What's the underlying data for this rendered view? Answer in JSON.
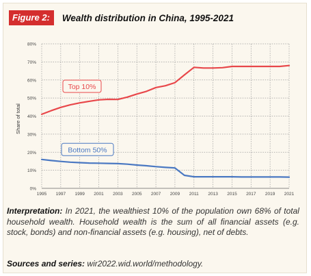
{
  "figure": {
    "badge": "Figure 2:",
    "title": "Wealth distribution in China, 1995-2021",
    "interpretation_label": "Interpretation:",
    "interpretation_text": "In 2021, the wealthiest 10% of the population own 68% of total household wealth. Household wealth is the sum of all financial assets (e.g. stock, bonds) and non-financial assets (e.g. housing), net of debts.",
    "sources_label": "Sources and series:",
    "sources_text": "wir2022.wid.world/methodology."
  },
  "colors": {
    "top10": "#e8474a",
    "bottom50": "#4a78c2",
    "badge": "#d42e2e",
    "grid": "#9a9a9a"
  },
  "chart_data": {
    "type": "line",
    "ylabel": "Share of total",
    "xlabel": "",
    "x": [
      1995,
      1996,
      1997,
      1998,
      1999,
      2000,
      2001,
      2002,
      2003,
      2004,
      2005,
      2006,
      2007,
      2008,
      2009,
      2010,
      2011,
      2012,
      2013,
      2014,
      2015,
      2016,
      2017,
      2018,
      2019,
      2020,
      2021
    ],
    "x_ticks": [
      "1995",
      "1997",
      "1999",
      "2001",
      "2003",
      "2005",
      "2007",
      "2009",
      "2011",
      "2013",
      "2015",
      "2017",
      "2019",
      "2021"
    ],
    "y_ticks": [
      "0%",
      "10%",
      "20%",
      "30%",
      "40%",
      "50%",
      "60%",
      "70%",
      "80%"
    ],
    "ylim": [
      0,
      80
    ],
    "xlim": [
      1995,
      2021
    ],
    "grid": true,
    "series": [
      {
        "name": "Top 10%",
        "values": [
          41,
          43,
          44.8,
          46.2,
          47.3,
          48.2,
          49,
          49.3,
          49.2,
          50.5,
          52.2,
          53.7,
          55.8,
          56.8,
          58.5,
          62.8,
          67,
          66.6,
          66.6,
          66.8,
          67.5,
          67.5,
          67.5,
          67.5,
          67.5,
          67.5,
          68
        ]
      },
      {
        "name": "Bottom 50%",
        "values": [
          16,
          15.4,
          14.9,
          14.5,
          14.2,
          14,
          13.9,
          13.8,
          13.7,
          13.4,
          12.9,
          12.5,
          12,
          11.6,
          11.3,
          7.2,
          6.4,
          6.4,
          6.4,
          6.4,
          6.4,
          6.3,
          6.3,
          6.3,
          6.3,
          6.3,
          6.2
        ]
      }
    ]
  }
}
